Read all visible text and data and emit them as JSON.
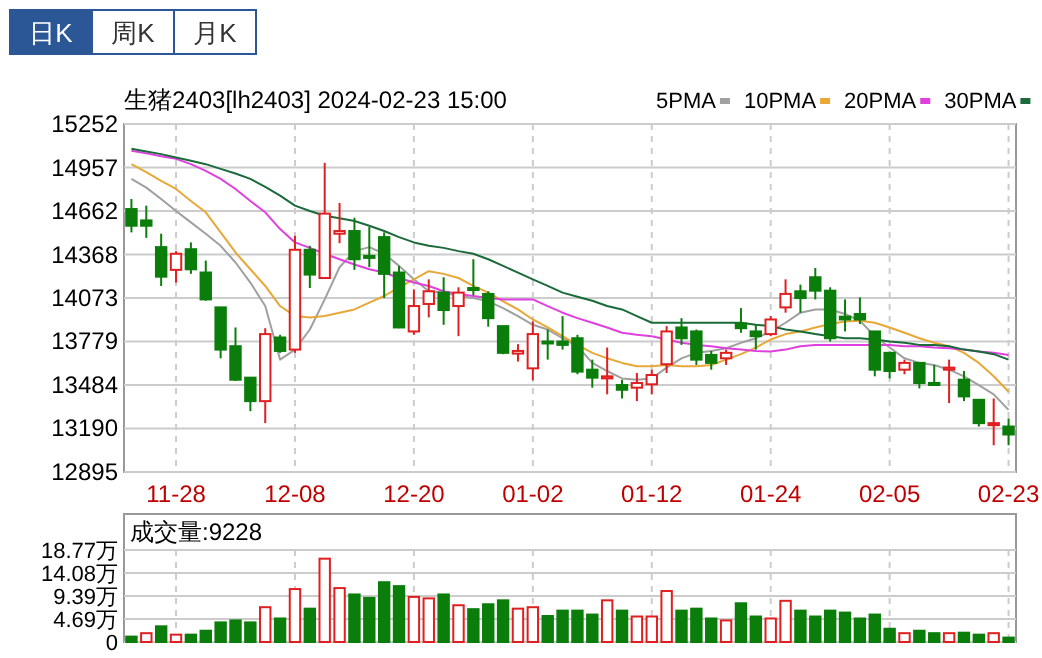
{
  "chart_data": [
    {
      "type": "candlestick",
      "title": "生猪2403[lh2403] 2024-02-23 15:00",
      "annotations": [
        "日K",
        "周K",
        "月K"
      ],
      "categories": [
        null,
        null,
        null,
        "11-28",
        null,
        null,
        null,
        null,
        null,
        null,
        null,
        "12-08",
        null,
        null,
        null,
        null,
        null,
        null,
        null,
        "12-20",
        null,
        null,
        null,
        null,
        null,
        null,
        null,
        "01-02",
        null,
        null,
        null,
        null,
        null,
        null,
        null,
        "01-12",
        null,
        null,
        null,
        null,
        null,
        null,
        null,
        "01-24",
        null,
        null,
        null,
        null,
        null,
        null,
        null,
        "02-05",
        null,
        null,
        null,
        null,
        null,
        null,
        null,
        "02-23"
      ],
      "ohlc": [
        [
          14676,
          14744,
          14518,
          14563
        ],
        [
          14599,
          14699,
          14481,
          14563
        ],
        [
          14418,
          14509,
          14155,
          14218
        ],
        [
          14264,
          14391,
          14178,
          14373
        ],
        [
          14404,
          14450,
          14237,
          14268
        ],
        [
          14246,
          14327,
          14055,
          14064
        ],
        [
          14010,
          14010,
          13665,
          13724
        ],
        [
          13747,
          13874,
          13511,
          13520
        ],
        [
          13534,
          13534,
          13307,
          13375
        ],
        [
          13375,
          13869,
          13226,
          13829
        ],
        [
          13806,
          13824,
          13702,
          13715
        ],
        [
          13724,
          14495,
          13702,
          14400
        ],
        [
          14400,
          14427,
          14141,
          14232
        ],
        [
          14209,
          14989,
          14209,
          14645
        ],
        [
          14509,
          14717,
          14445,
          14527
        ],
        [
          14527,
          14617,
          14264,
          14336
        ],
        [
          14359,
          14554,
          14282,
          14345
        ],
        [
          14486,
          14518,
          14073,
          14237
        ],
        [
          14246,
          14291,
          13869,
          13874
        ],
        [
          13847,
          14132,
          13824,
          14019
        ],
        [
          14033,
          14200,
          13942,
          14119
        ],
        [
          14110,
          14214,
          13892,
          13992
        ],
        [
          14019,
          14146,
          13815,
          14110
        ],
        [
          14141,
          14336,
          14092,
          14128
        ],
        [
          14101,
          14119,
          13879,
          13937
        ],
        [
          13883,
          13883,
          13693,
          13702
        ],
        [
          13697,
          13761,
          13643,
          13715
        ],
        [
          13597,
          13915,
          13516,
          13829
        ],
        [
          13779,
          13860,
          13656,
          13770
        ],
        [
          13779,
          13951,
          13724,
          13756
        ],
        [
          13801,
          13824,
          13557,
          13575
        ],
        [
          13588,
          13656,
          13466,
          13534
        ],
        [
          13529,
          13738,
          13421,
          13543
        ],
        [
          13484,
          13520,
          13393,
          13452
        ],
        [
          13466,
          13566,
          13375,
          13498
        ],
        [
          13489,
          13588,
          13421,
          13552
        ],
        [
          13625,
          13883,
          13566,
          13847
        ],
        [
          13874,
          13937,
          13756,
          13801
        ],
        [
          13847,
          13860,
          13620,
          13656
        ],
        [
          13688,
          13715,
          13588,
          13634
        ],
        [
          13665,
          13724,
          13620,
          13702
        ],
        [
          13901,
          14005,
          13838,
          13869
        ],
        [
          13847,
          13892,
          13724,
          13815
        ],
        [
          13829,
          13951,
          13815,
          13928
        ],
        [
          14010,
          14200,
          13974,
          14101
        ],
        [
          14119,
          14164,
          13974,
          14073
        ],
        [
          14214,
          14277,
          14064,
          14123
        ],
        [
          14123,
          14146,
          13779,
          13801
        ],
        [
          13947,
          14064,
          13847,
          13928
        ],
        [
          13965,
          14078,
          13897,
          13928
        ],
        [
          13847,
          13847,
          13543,
          13588
        ],
        [
          13702,
          13711,
          13529,
          13579
        ],
        [
          13588,
          13656,
          13557,
          13634
        ],
        [
          13634,
          13634,
          13461,
          13498
        ],
        [
          13498,
          13620,
          13484,
          13489
        ],
        [
          13588,
          13656,
          13362,
          13602
        ],
        [
          13520,
          13579,
          13375,
          13407
        ],
        [
          13384,
          13384,
          13203,
          13226
        ],
        [
          13217,
          13393,
          13076,
          13226
        ],
        [
          13203,
          13257,
          13076,
          13149
        ]
      ],
      "colors": [
        "#0a7d0a",
        "#0a7d0a",
        "#0a7d0a",
        "#e02020",
        "#0a7d0a",
        "#0a7d0a",
        "#0a7d0a",
        "#0a7d0a",
        "#0a7d0a",
        "#e02020",
        "#0a7d0a",
        "#e02020",
        "#0a7d0a",
        "#e02020",
        "#e02020",
        "#0a7d0a",
        "#0a7d0a",
        "#0a7d0a",
        "#0a7d0a",
        "#e02020",
        "#e02020",
        "#0a7d0a",
        "#e02020",
        "#0a7d0a",
        "#0a7d0a",
        "#0a7d0a",
        "#e02020",
        "#e02020",
        "#0a7d0a",
        "#0a7d0a",
        "#0a7d0a",
        "#0a7d0a",
        "#e02020",
        "#0a7d0a",
        "#e02020",
        "#e02020",
        "#e02020",
        "#0a7d0a",
        "#0a7d0a",
        "#0a7d0a",
        "#e02020",
        "#0a7d0a",
        "#0a7d0a",
        "#e02020",
        "#e02020",
        "#0a7d0a",
        "#0a7d0a",
        "#0a7d0a",
        "#0a7d0a",
        "#0a7d0a",
        "#0a7d0a",
        "#0a7d0a",
        "#e02020",
        "#0a7d0a",
        "#0a7d0a",
        "#e02020",
        "#0a7d0a",
        "#0a7d0a",
        "#e02020",
        "#0a7d0a"
      ],
      "series": [
        {
          "name": "5PMA",
          "type": "line",
          "color": "#a0a0a0",
          "values": [
            14880,
            14821,
            14744,
            14663,
            14586,
            14509,
            14427,
            14314,
            14178,
            14019,
            13656,
            13724,
            13860,
            14064,
            14282,
            14391,
            14418,
            14373,
            14291,
            14200,
            14119,
            14110,
            14087,
            14073,
            14051,
            14005,
            13951,
            13892,
            13860,
            13801,
            13747,
            13634,
            13579,
            13529,
            13520,
            13529,
            13602,
            13665,
            13702,
            13715,
            13733,
            13770,
            13801,
            13847,
            13906,
            13974,
            13996,
            13996,
            13965,
            13919,
            13815,
            13738,
            13665,
            13634,
            13620,
            13588,
            13543,
            13484,
            13421,
            13316
          ]
        },
        {
          "name": "10PMA",
          "type": "line",
          "color": "#e8a838",
          "values": [
            14980,
            14926,
            14867,
            14812,
            14731,
            14654,
            14518,
            14382,
            14268,
            14155,
            14019,
            13951,
            13942,
            13951,
            13974,
            13996,
            14042,
            14087,
            14146,
            14200,
            14255,
            14237,
            14209,
            14155,
            14110,
            14051,
            13996,
            13928,
            13874,
            13815,
            13756,
            13702,
            13665,
            13634,
            13611,
            13611,
            13620,
            13611,
            13611,
            13620,
            13656,
            13693,
            13738,
            13792,
            13829,
            13847,
            13874,
            13897,
            13915,
            13919,
            13906,
            13874,
            13838,
            13801,
            13770,
            13747,
            13702,
            13634,
            13543,
            13439
          ]
        },
        {
          "name": "20PMA",
          "type": "line",
          "color": "#e040e0",
          "values": [
            15071,
            15053,
            15034,
            15016,
            14980,
            14935,
            14880,
            14812,
            14731,
            14654,
            14540,
            14450,
            14413,
            14373,
            14336,
            14300,
            14268,
            14246,
            14209,
            14178,
            14155,
            14119,
            14101,
            14087,
            14073,
            14064,
            14064,
            14064,
            14019,
            13974,
            13937,
            13906,
            13874,
            13838,
            13824,
            13815,
            13792,
            13770,
            13756,
            13747,
            13733,
            13724,
            13715,
            13711,
            13724,
            13747,
            13756,
            13756,
            13756,
            13756,
            13756,
            13756,
            13747,
            13747,
            13738,
            13733,
            13724,
            13711,
            13702,
            13688
          ]
        },
        {
          "name": "30PMA",
          "type": "line",
          "color": "#1a6a3a",
          "values": [
            15084,
            15066,
            15048,
            15025,
            15003,
            14980,
            14948,
            14917,
            14880,
            14826,
            14767,
            14699,
            14663,
            14631,
            14613,
            14595,
            14563,
            14527,
            14486,
            14450,
            14427,
            14413,
            14391,
            14373,
            14336,
            14291,
            14246,
            14200,
            14155,
            14110,
            14082,
            14055,
            14019,
            13996,
            13951,
            13906,
            13906,
            13906,
            13906,
            13906,
            13906,
            13906,
            13892,
            13883,
            13860,
            13847,
            13829,
            13815,
            13801,
            13801,
            13792,
            13779,
            13770,
            13756,
            13756,
            13747,
            13724,
            13711,
            13693,
            13656
          ]
        }
      ],
      "ylim": [
        12895,
        15252
      ],
      "yticks": [
        12895,
        13190,
        13484,
        13779,
        14073,
        14368,
        14662,
        14957,
        15252
      ],
      "grid": true,
      "legend": "top right"
    },
    {
      "type": "bar",
      "title": "成交量:9228",
      "categories": [
        null,
        null,
        null,
        null,
        null,
        null,
        null,
        null,
        null,
        null,
        null,
        null,
        null,
        null,
        null,
        null,
        null,
        null,
        null,
        null,
        null,
        null,
        null,
        null,
        null,
        null,
        null,
        null,
        null,
        null,
        null,
        null,
        null,
        null,
        null,
        null,
        null,
        null,
        null,
        null,
        null,
        null,
        null,
        null,
        null,
        null,
        null,
        null,
        null,
        null,
        null,
        null,
        null,
        null,
        null,
        null,
        null,
        null,
        null,
        null
      ],
      "values": [
        1.1,
        1.8,
        3.2,
        1.5,
        1.5,
        2.3,
        4.0,
        4.4,
        4.0,
        7.1,
        4.8,
        10.8,
        6.8,
        17.0,
        11.0,
        9.7,
        9.0,
        12.2,
        11.4,
        9.2,
        8.9,
        9.7,
        7.5,
        6.7,
        7.7,
        8.5,
        6.8,
        7.1,
        5.3,
        6.4,
        6.4,
        5.6,
        8.5,
        6.4,
        5.2,
        5.2,
        10.4,
        6.4,
        6.8,
        4.8,
        4.4,
        7.9,
        5.2,
        4.8,
        8.4,
        6.4,
        5.2,
        6.4,
        6.0,
        4.8,
        5.6,
        2.7,
        1.8,
        2.3,
        1.8,
        1.8,
        1.9,
        1.5,
        1.8,
        0.9
      ],
      "colors": [
        "#0a7d0a",
        "#e02020",
        "#0a7d0a",
        "#e02020",
        "#0a7d0a",
        "#0a7d0a",
        "#0a7d0a",
        "#0a7d0a",
        "#0a7d0a",
        "#e02020",
        "#0a7d0a",
        "#e02020",
        "#0a7d0a",
        "#e02020",
        "#e02020",
        "#0a7d0a",
        "#0a7d0a",
        "#0a7d0a",
        "#0a7d0a",
        "#e02020",
        "#e02020",
        "#0a7d0a",
        "#e02020",
        "#0a7d0a",
        "#0a7d0a",
        "#0a7d0a",
        "#e02020",
        "#e02020",
        "#0a7d0a",
        "#0a7d0a",
        "#0a7d0a",
        "#0a7d0a",
        "#e02020",
        "#0a7d0a",
        "#e02020",
        "#e02020",
        "#e02020",
        "#0a7d0a",
        "#0a7d0a",
        "#0a7d0a",
        "#e02020",
        "#0a7d0a",
        "#0a7d0a",
        "#e02020",
        "#e02020",
        "#0a7d0a",
        "#0a7d0a",
        "#0a7d0a",
        "#0a7d0a",
        "#0a7d0a",
        "#0a7d0a",
        "#0a7d0a",
        "#e02020",
        "#0a7d0a",
        "#0a7d0a",
        "#e02020",
        "#0a7d0a",
        "#0a7d0a",
        "#e02020",
        "#0a7d0a"
      ],
      "ylim": [
        0,
        18.77
      ],
      "yticks": [
        0,
        {
          "value": 4.69,
          "label": "4.69万"
        },
        {
          "value": 9.39,
          "label": "9.39万"
        },
        {
          "value": 14.08,
          "label": "14.08万"
        },
        {
          "value": 18.77,
          "label": "18.77万"
        }
      ],
      "grid": true,
      "tick_labels": "y"
    }
  ]
}
